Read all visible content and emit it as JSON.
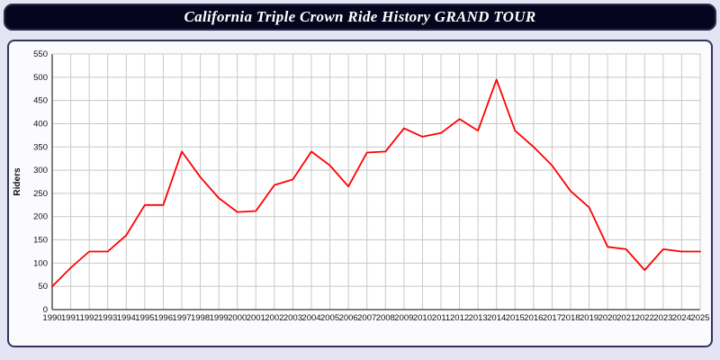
{
  "header": {
    "title": "California Triple Crown Ride History GRAND TOUR"
  },
  "chart_data": {
    "type": "line",
    "title": "California Triple Crown Ride History GRAND TOUR",
    "xlabel": "",
    "ylabel": "Riders",
    "ylim": [
      0,
      550
    ],
    "y_tick_step": 50,
    "grid": true,
    "legend_position": "none",
    "line_color": "#ff0000",
    "categories": [
      "1990",
      "1991",
      "1992",
      "1993",
      "1994",
      "1995",
      "1996",
      "1997",
      "1998",
      "1999",
      "2000",
      "2001",
      "2002",
      "2003",
      "2004",
      "2005",
      "2006",
      "2007",
      "2008",
      "2009",
      "2010",
      "2011",
      "2012",
      "2013",
      "2014",
      "2015",
      "2016",
      "2017",
      "2018",
      "2019",
      "2020",
      "2021",
      "2022",
      "2023",
      "2024",
      "2025"
    ],
    "series": [
      {
        "name": "Riders",
        "values": [
          50,
          90,
          125,
          125,
          160,
          225,
          225,
          340,
          285,
          240,
          210,
          212,
          268,
          280,
          340,
          310,
          265,
          338,
          340,
          390,
          372,
          380,
          410,
          385,
          495,
          385,
          350,
          310,
          255,
          220,
          135,
          130,
          85,
          130,
          125,
          125
        ]
      }
    ]
  },
  "colors": {
    "background": "#e4e4f4",
    "title_bar_bg": "#05051e",
    "title_text": "#ffffff",
    "panel_border": "#33335c",
    "grid": "#c8c8c8",
    "axis": "#555555",
    "line": "#ff0000"
  }
}
